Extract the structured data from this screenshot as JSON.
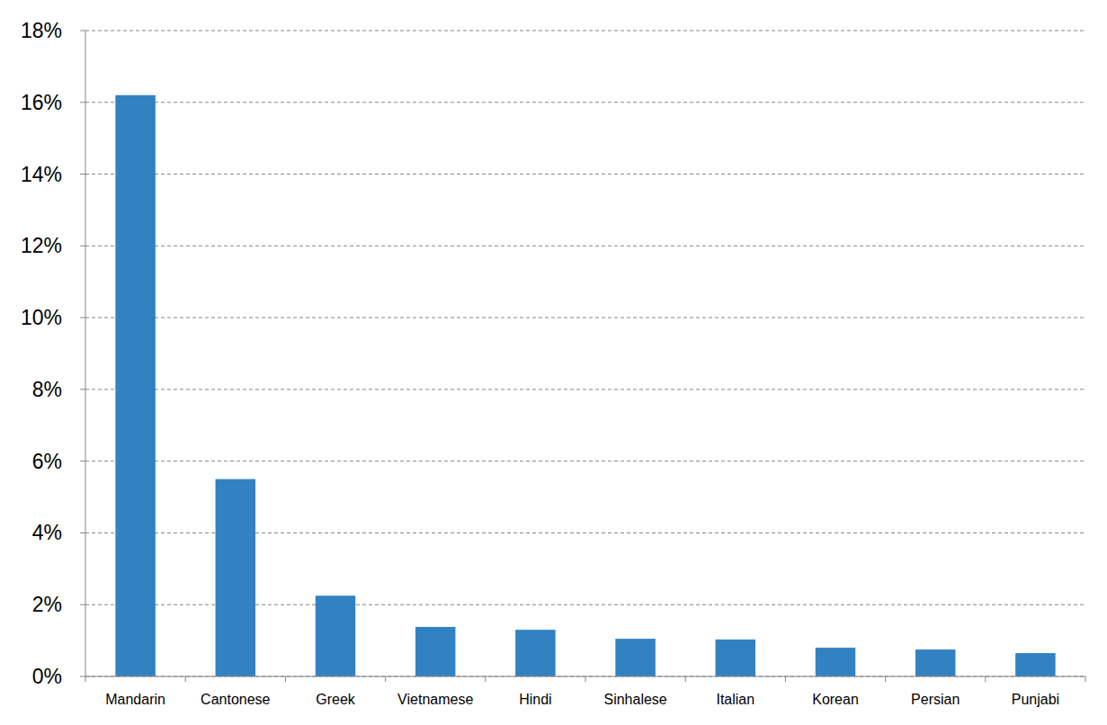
{
  "chart_data": {
    "type": "bar",
    "categories": [
      "Mandarin",
      "Cantonese",
      "Greek",
      "Vietnamese",
      "Hindi",
      "Sinhalese",
      "Italian",
      "Korean",
      "Persian",
      "Punjabi"
    ],
    "values": [
      16.2,
      5.5,
      2.25,
      1.38,
      1.3,
      1.05,
      1.03,
      0.8,
      0.75,
      0.65
    ],
    "color": "#3282c2",
    "ylim": [
      0,
      18
    ],
    "yticks": [
      {
        "value": 0,
        "label": "0%"
      },
      {
        "value": 2,
        "label": "2%"
      },
      {
        "value": 4,
        "label": "4%"
      },
      {
        "value": 6,
        "label": "6%"
      },
      {
        "value": 8,
        "label": "8%"
      },
      {
        "value": 10,
        "label": "10%"
      },
      {
        "value": 12,
        "label": "12%"
      },
      {
        "value": 14,
        "label": "14%"
      },
      {
        "value": 16,
        "label": "16%"
      },
      {
        "value": 18,
        "label": "18%"
      }
    ],
    "grid": true
  }
}
